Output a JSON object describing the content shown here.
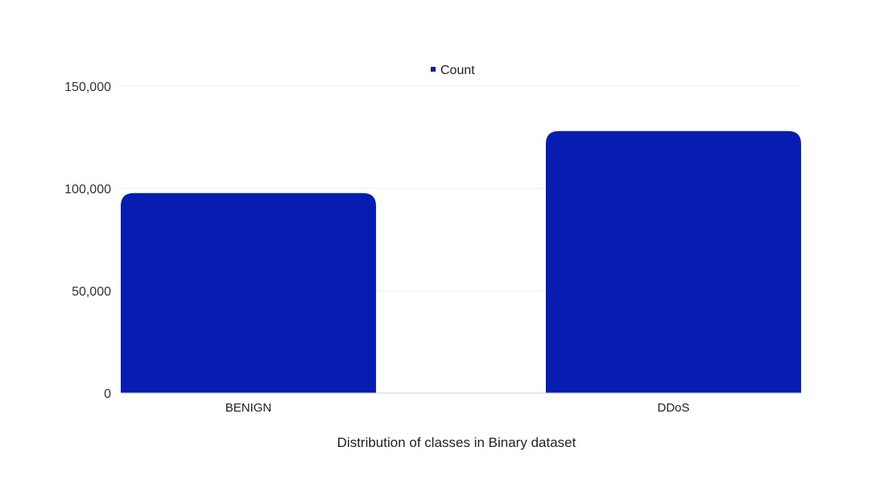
{
  "chart_data": {
    "type": "bar",
    "title": "Distribution of classes in Binary dataset",
    "xlabel": "",
    "ylabel": "",
    "categories": [
      "BENIGN",
      "DDoS"
    ],
    "series": [
      {
        "name": "Count",
        "values": [
          97718,
          128027
        ],
        "color": "#071CB0"
      }
    ],
    "ylim": [
      0,
      150000
    ],
    "yticks": [
      0,
      50000,
      100000,
      150000
    ],
    "ytick_labels": [
      "0",
      "50,000",
      "100,000",
      "150,000"
    ],
    "grid": true,
    "legend": "top-center",
    "title_position": "bottom"
  }
}
